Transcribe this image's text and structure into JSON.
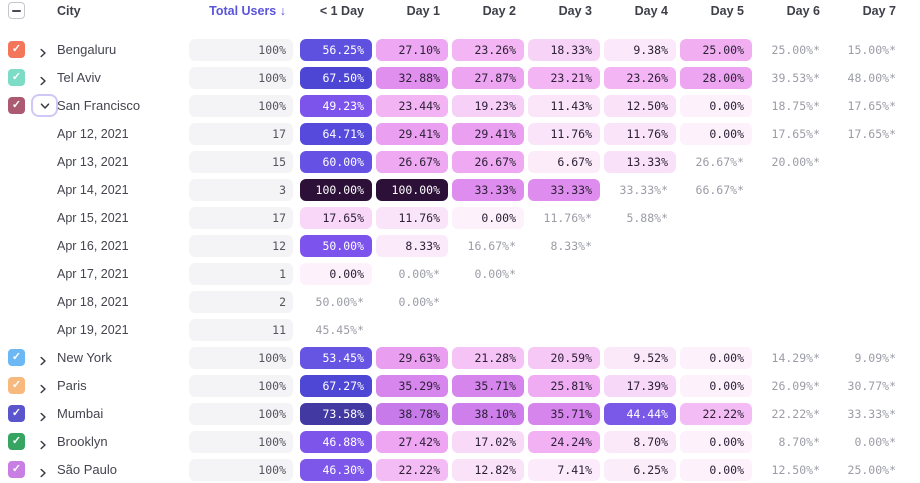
{
  "header": {
    "select_all_state": "indeterminate",
    "city": "City",
    "total_users": "Total Users",
    "sort_arrow": "↓",
    "days": [
      "< 1 Day",
      "Day 1",
      "Day 2",
      "Day 3",
      "Day 4",
      "Day 5",
      "Day 6",
      "Day 7"
    ]
  },
  "colors": {
    "accent": "#5a54d8",
    "total_cell_bg": "#f4f3f6",
    "starred_text": "#9b9ca6",
    "header_text": "#3e3f49",
    "label_text": "#44454f",
    "cell_dark_text": "#2b2136",
    "cell_light_text": "#ffffff",
    "focus_ring": "#cfc8f7"
  },
  "heatmap_stops": [
    [
      0,
      "#fdf1fc"
    ],
    [
      7,
      "#fcecfa"
    ],
    [
      12,
      "#fae4f9"
    ],
    [
      17,
      "#f8daf8"
    ],
    [
      20,
      "#f6ccf6"
    ],
    [
      23,
      "#f3b6f3"
    ],
    [
      26,
      "#f0abf2"
    ],
    [
      29,
      "#eba1f1"
    ],
    [
      32,
      "#e392ee"
    ],
    [
      35,
      "#d887ed"
    ],
    [
      38,
      "#cf80eb"
    ],
    [
      41,
      "#b06ee9"
    ],
    [
      44,
      "#7a5ae8"
    ],
    [
      47,
      "#7e55ea"
    ],
    [
      50,
      "#7c53ec"
    ],
    [
      54,
      "#6254e2"
    ],
    [
      58,
      "#5c4fde"
    ],
    [
      61,
      "#6a54e7"
    ],
    [
      65,
      "#5449db"
    ],
    [
      68,
      "#4c45d3"
    ],
    [
      74,
      "#42389e"
    ],
    [
      86,
      "#34175c"
    ],
    [
      100,
      "#2d1038"
    ]
  ],
  "white_text_threshold": 43,
  "rows": [
    {
      "type": "city",
      "name": "Bengaluru",
      "checkbox_color": "#f4765a",
      "expanded": false,
      "total": "100%",
      "cells": [
        {
          "v": 56.25
        },
        {
          "v": 27.1
        },
        {
          "v": 23.26
        },
        {
          "v": 18.33
        },
        {
          "v": 9.38
        },
        {
          "v": 25.0
        },
        {
          "v": 25.0,
          "star": true
        },
        {
          "v": 15.0,
          "star": true
        }
      ]
    },
    {
      "type": "city",
      "name": "Tel Aviv",
      "checkbox_color": "#7cdcc6",
      "expanded": false,
      "total": "100%",
      "cells": [
        {
          "v": 67.5
        },
        {
          "v": 32.88
        },
        {
          "v": 27.87
        },
        {
          "v": 23.21
        },
        {
          "v": 23.26
        },
        {
          "v": 28.0
        },
        {
          "v": 39.53,
          "star": true
        },
        {
          "v": 48.0,
          "star": true
        }
      ]
    },
    {
      "type": "city",
      "name": "San Francisco",
      "checkbox_color": "#ab5a71",
      "expanded": true,
      "total": "100%",
      "cells": [
        {
          "v": 49.23
        },
        {
          "v": 23.44
        },
        {
          "v": 19.23
        },
        {
          "v": 11.43
        },
        {
          "v": 12.5
        },
        {
          "v": 0.0
        },
        {
          "v": 18.75,
          "star": true
        },
        {
          "v": 17.65,
          "star": true
        }
      ]
    },
    {
      "type": "date",
      "name": "Apr 12, 2021",
      "total": "17",
      "cells": [
        {
          "v": 64.71
        },
        {
          "v": 29.41
        },
        {
          "v": 29.41
        },
        {
          "v": 11.76
        },
        {
          "v": 11.76
        },
        {
          "v": 0.0
        },
        {
          "v": 17.65,
          "star": true
        },
        {
          "v": 17.65,
          "star": true
        }
      ]
    },
    {
      "type": "date",
      "name": "Apr 13, 2021",
      "total": "15",
      "cells": [
        {
          "v": 60.0
        },
        {
          "v": 26.67
        },
        {
          "v": 26.67
        },
        {
          "v": 6.67
        },
        {
          "v": 13.33
        },
        {
          "v": 26.67,
          "star": true
        },
        {
          "v": 20.0,
          "star": true
        },
        null
      ]
    },
    {
      "type": "date",
      "name": "Apr 14, 2021",
      "total": "3",
      "cells": [
        {
          "v": 100.0
        },
        {
          "v": 100.0
        },
        {
          "v": 33.33
        },
        {
          "v": 33.33
        },
        {
          "v": 33.33,
          "star": true
        },
        {
          "v": 66.67,
          "star": true
        },
        null,
        null
      ]
    },
    {
      "type": "date",
      "name": "Apr 15, 2021",
      "total": "17",
      "cells": [
        {
          "v": 17.65
        },
        {
          "v": 11.76
        },
        {
          "v": 0.0
        },
        {
          "v": 11.76,
          "star": true
        },
        {
          "v": 5.88,
          "star": true
        },
        null,
        null,
        null
      ]
    },
    {
      "type": "date",
      "name": "Apr 16, 2021",
      "total": "12",
      "cells": [
        {
          "v": 50.0
        },
        {
          "v": 8.33
        },
        {
          "v": 16.67,
          "star": true
        },
        {
          "v": 8.33,
          "star": true
        },
        null,
        null,
        null,
        null
      ]
    },
    {
      "type": "date",
      "name": "Apr 17, 2021",
      "total": "1",
      "cells": [
        {
          "v": 0.0
        },
        {
          "v": 0.0,
          "star": true
        },
        {
          "v": 0.0,
          "star": true
        },
        null,
        null,
        null,
        null,
        null
      ]
    },
    {
      "type": "date",
      "name": "Apr 18, 2021",
      "total": "2",
      "cells": [
        {
          "v": 50.0,
          "star": true
        },
        {
          "v": 0.0,
          "star": true
        },
        null,
        null,
        null,
        null,
        null,
        null
      ]
    },
    {
      "type": "date",
      "name": "Apr 19, 2021",
      "total": "11",
      "cells": [
        {
          "v": 45.45,
          "star": true
        },
        null,
        null,
        null,
        null,
        null,
        null,
        null
      ]
    },
    {
      "type": "city",
      "name": "New York",
      "checkbox_color": "#6cb8f4",
      "expanded": false,
      "total": "100%",
      "cells": [
        {
          "v": 53.45
        },
        {
          "v": 29.63
        },
        {
          "v": 21.28
        },
        {
          "v": 20.59
        },
        {
          "v": 9.52
        },
        {
          "v": 0.0
        },
        {
          "v": 14.29,
          "star": true
        },
        {
          "v": 9.09,
          "star": true
        }
      ]
    },
    {
      "type": "city",
      "name": "Paris",
      "checkbox_color": "#f8b97e",
      "expanded": false,
      "total": "100%",
      "cells": [
        {
          "v": 67.27
        },
        {
          "v": 35.29
        },
        {
          "v": 35.71
        },
        {
          "v": 25.81
        },
        {
          "v": 17.39
        },
        {
          "v": 0.0
        },
        {
          "v": 26.09,
          "star": true
        },
        {
          "v": 30.77,
          "star": true
        }
      ]
    },
    {
      "type": "city",
      "name": "Mumbai",
      "checkbox_color": "#5a55cc",
      "expanded": false,
      "total": "100%",
      "cells": [
        {
          "v": 73.58
        },
        {
          "v": 38.78
        },
        {
          "v": 38.1
        },
        {
          "v": 35.71
        },
        {
          "v": 44.44
        },
        {
          "v": 22.22
        },
        {
          "v": 22.22,
          "star": true
        },
        {
          "v": 33.33,
          "star": true
        }
      ]
    },
    {
      "type": "city",
      "name": "Brooklyn",
      "checkbox_color": "#37a562",
      "expanded": false,
      "total": "100%",
      "cells": [
        {
          "v": 46.88
        },
        {
          "v": 27.42
        },
        {
          "v": 17.02
        },
        {
          "v": 24.24
        },
        {
          "v": 8.7
        },
        {
          "v": 0.0
        },
        {
          "v": 8.7,
          "star": true
        },
        {
          "v": 0.0,
          "star": true
        }
      ]
    },
    {
      "type": "city",
      "name": "São Paulo",
      "checkbox_color": "#c97ee4",
      "expanded": false,
      "total": "100%",
      "cells": [
        {
          "v": 46.3
        },
        {
          "v": 22.22
        },
        {
          "v": 12.82
        },
        {
          "v": 7.41
        },
        {
          "v": 6.25
        },
        {
          "v": 0.0
        },
        {
          "v": 12.5,
          "star": true
        },
        {
          "v": 25.0,
          "star": true
        }
      ]
    }
  ]
}
